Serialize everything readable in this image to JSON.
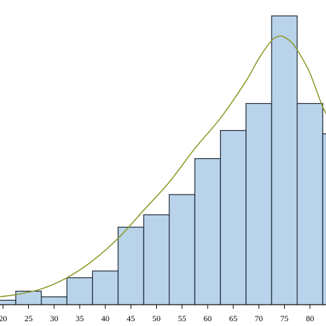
{
  "chart_data": {
    "type": "bar",
    "subtype": "histogram",
    "title": "",
    "xlabel": "",
    "ylabel": "",
    "x_ticks": [
      20,
      25,
      30,
      35,
      40,
      45,
      50,
      55,
      60,
      65,
      70,
      75,
      80
    ],
    "x_tick_labels": [
      "20",
      "25",
      "30",
      "35",
      "40",
      "45",
      "50",
      "55",
      "60",
      "65",
      "70",
      "75",
      "80"
    ],
    "bin_width": 5,
    "bins": [
      {
        "start": 17.5,
        "end": 22.5,
        "value": 0.4
      },
      {
        "start": 22.5,
        "end": 27.5,
        "value": 1.2
      },
      {
        "start": 27.5,
        "end": 32.5,
        "value": 0.7
      },
      {
        "start": 32.5,
        "end": 37.5,
        "value": 2.4
      },
      {
        "start": 37.5,
        "end": 42.5,
        "value": 3.0
      },
      {
        "start": 42.5,
        "end": 47.5,
        "value": 6.9
      },
      {
        "start": 47.5,
        "end": 52.5,
        "value": 8.0
      },
      {
        "start": 52.5,
        "end": 57.5,
        "value": 9.8
      },
      {
        "start": 57.5,
        "end": 62.5,
        "value": 13.0
      },
      {
        "start": 62.5,
        "end": 67.5,
        "value": 15.5
      },
      {
        "start": 67.5,
        "end": 72.5,
        "value": 17.9
      },
      {
        "start": 72.5,
        "end": 77.5,
        "value": 25.7
      },
      {
        "start": 77.5,
        "end": 82.5,
        "value": 17.9
      },
      {
        "start": 82.5,
        "end": 87.5,
        "value": 15.2
      }
    ],
    "density_curve": {
      "x": [
        17.5,
        22.5,
        27.5,
        32.5,
        37.5,
        42.5,
        47.5,
        52.5,
        57.5,
        62.5,
        67.5,
        70,
        72.5,
        74,
        75,
        76.5,
        78,
        80,
        82.5,
        85
      ],
      "y": [
        0.6,
        0.9,
        1.4,
        2.4,
        3.9,
        5.9,
        8.4,
        10.9,
        13.9,
        16.6,
        19.9,
        21.9,
        23.5,
        23.9,
        23.8,
        23.3,
        22.3,
        20.6,
        17.6,
        15.5
      ]
    },
    "ylim": [
      0,
      26.5
    ],
    "xlim": [
      17.5,
      87.5
    ],
    "grid": false,
    "legend": "none",
    "colors": {
      "bar_fill": "#b8d3ea",
      "bar_stroke": "#1b2733",
      "curve": "#8e9a2c",
      "axis": "#000000"
    }
  }
}
